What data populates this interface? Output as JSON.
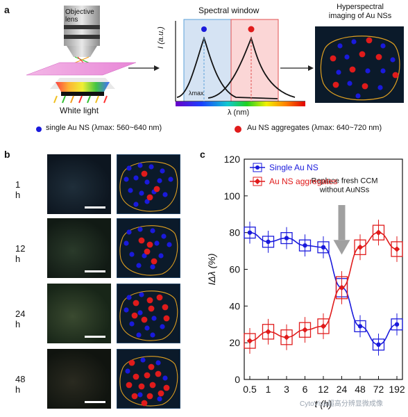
{
  "panel_a": {
    "letter": "a",
    "objective_label_line1": "Objective",
    "objective_label_line2": "lens",
    "white_light": "White light",
    "spectral_window": "Spectral window",
    "ylabel": "I (a.u.)",
    "xlabel": "λ (nm)",
    "lambda_max": "λmax",
    "hyperspectral_line1": "Hyperspectral",
    "hyperspectral_line2": "imaging of Au NSs",
    "legend_blue": "single Au NS (λmax: 560~640 nm)",
    "legend_red": "Au NS aggregates (λmax: 640~720 nm)",
    "colors": {
      "blue": "#1a1adc",
      "red": "#e01b1b",
      "orange": "#e0a020"
    }
  },
  "panel_b": {
    "letter": "b",
    "times": [
      "1 h",
      "12 h",
      "24 h",
      "48 h"
    ]
  },
  "panel_c": {
    "letter": "c",
    "annotation_line1": "Replace fresh CCM",
    "annotation_line2": "without AuNSs",
    "watermark": "CytoViva超高分辨显微成像"
  },
  "chart_data": {
    "type": "line",
    "categories": [
      "0.5",
      "1",
      "3",
      "6",
      "12",
      "24",
      "48",
      "72",
      "192"
    ],
    "xlabel": "t (h)",
    "ylabel": "IΔλ (%)",
    "ylim": [
      0,
      120
    ],
    "yticks": [
      0,
      20,
      40,
      60,
      80,
      100,
      120
    ],
    "legend": "top-left",
    "series": [
      {
        "name": "Single Au NS",
        "color": "#1a1adc",
        "values": [
          80,
          75,
          77,
          73,
          72,
          50,
          29,
          19,
          30
        ]
      },
      {
        "name": "Au NS aggregates",
        "color": "#e01b1b",
        "values": [
          21,
          26,
          23,
          27,
          29,
          50,
          72,
          80,
          71
        ]
      }
    ]
  }
}
